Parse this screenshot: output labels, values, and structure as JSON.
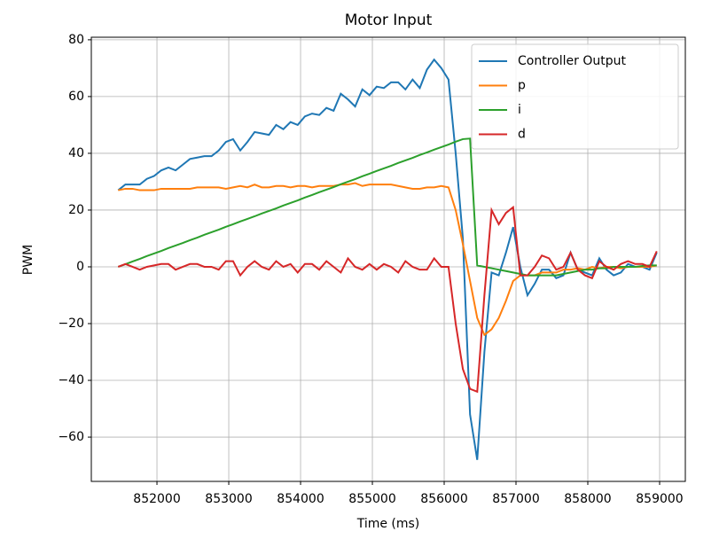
{
  "chart_data": {
    "type": "line",
    "title": "Motor Input",
    "x_label": "Time (ms)",
    "y_label": "PWM",
    "x": [
      851460,
      851560,
      851660,
      851760,
      851860,
      851960,
      852060,
      852160,
      852260,
      852360,
      852460,
      852560,
      852660,
      852760,
      852860,
      852960,
      853060,
      853160,
      853260,
      853360,
      853460,
      853560,
      853660,
      853760,
      853860,
      853960,
      854060,
      854160,
      854260,
      854360,
      854460,
      854560,
      854660,
      854760,
      854860,
      854960,
      855060,
      855160,
      855260,
      855360,
      855460,
      855560,
      855660,
      855760,
      855860,
      855960,
      856060,
      856160,
      856260,
      856360,
      856460,
      856560,
      856660,
      856760,
      856860,
      856960,
      857060,
      857160,
      857260,
      857360,
      857460,
      857560,
      857660,
      857760,
      857860,
      857960,
      858060,
      858160,
      858260,
      858360,
      858460,
      858560,
      858660,
      858760,
      858860,
      858960
    ],
    "series": [
      {
        "name": "Controller Output",
        "color": "#1f77b4",
        "values": [
          27,
          29,
          29,
          29,
          31,
          32,
          34,
          35,
          34,
          36,
          38,
          38.5,
          39,
          39,
          41,
          44,
          45,
          41,
          44,
          47.5,
          47,
          46.5,
          50,
          48.5,
          51,
          50,
          53,
          54,
          53.5,
          56,
          55,
          61,
          59,
          56.5,
          62.5,
          60.5,
          63.5,
          63,
          65,
          65,
          62.5,
          66,
          63,
          69.5,
          73,
          70,
          66,
          40,
          10,
          -52,
          -68,
          -30,
          -2,
          -3,
          5,
          14,
          0,
          -10,
          -6,
          -1,
          -1,
          -4,
          -3,
          5,
          -1,
          -2,
          -3,
          3,
          -1,
          -3,
          -2,
          1,
          0,
          0,
          -1,
          5
        ]
      },
      {
        "name": "p",
        "color": "#ff7f0e",
        "values": [
          27,
          27.5,
          27.5,
          27,
          27,
          27,
          27.5,
          27.5,
          27.5,
          27.5,
          27.5,
          28,
          28,
          28,
          28,
          27.5,
          28,
          28.5,
          28,
          29,
          28,
          28,
          28.5,
          28.5,
          28,
          28.5,
          28.5,
          28,
          28.5,
          28.5,
          28.5,
          29,
          29,
          29.5,
          28.5,
          29,
          29,
          29,
          29,
          28.5,
          28,
          27.5,
          27.5,
          28,
          28,
          28.5,
          28,
          20,
          8,
          -5,
          -18,
          -24,
          -22,
          -18,
          -12,
          -5,
          -3,
          -3,
          -3,
          -2,
          -2,
          -2,
          -1,
          -1,
          -0.5,
          -1,
          0,
          -0.5,
          0,
          0,
          -0.5,
          0,
          0,
          0,
          0,
          0.5
        ]
      },
      {
        "name": "i",
        "color": "#2ca02c",
        "values": [
          0,
          0.9,
          1.9,
          2.8,
          3.8,
          4.7,
          5.6,
          6.6,
          7.5,
          8.4,
          9.4,
          10.3,
          11.3,
          12.2,
          13.1,
          14.1,
          15,
          16,
          16.9,
          17.8,
          18.8,
          19.7,
          20.6,
          21.6,
          22.5,
          23.4,
          24.4,
          25.3,
          26.3,
          27.2,
          28.1,
          29.1,
          30,
          30.9,
          31.9,
          32.8,
          33.8,
          34.7,
          35.6,
          36.6,
          37.5,
          38.4,
          39.4,
          40.3,
          41.3,
          42.2,
          43.1,
          44.1,
          45,
          45.2,
          0.5,
          0,
          -0.5,
          -1,
          -1.5,
          -2,
          -2.5,
          -3,
          -3,
          -3,
          -3,
          -3,
          -2.5,
          -2,
          -1.5,
          -1,
          -1,
          -0.5,
          -0.5,
          0,
          0,
          0,
          0,
          0.3,
          0.5,
          0.5
        ]
      },
      {
        "name": "d",
        "color": "#d62728",
        "values": [
          0,
          1,
          0,
          -1,
          0,
          0.5,
          1,
          1,
          -1,
          0,
          1,
          1,
          0,
          0,
          -1,
          2,
          2,
          -3,
          0,
          2,
          0,
          -1,
          2,
          0,
          1,
          -2,
          1,
          1,
          -1,
          2,
          0,
          -2,
          3,
          0,
          -1,
          1,
          -1,
          1,
          0,
          -2,
          2,
          0,
          -1,
          -1,
          3,
          0,
          0,
          -20,
          -36,
          -43,
          -44,
          -10,
          20,
          15,
          19,
          21,
          -3,
          -3,
          0,
          4,
          3,
          -1,
          0,
          5,
          -1,
          -3,
          -4,
          2,
          0,
          -1,
          1,
          2,
          1,
          1,
          0,
          5.5
        ]
      }
    ],
    "xlim": [
      851086,
      859358
    ],
    "ylim": [
      -75.6,
      80.9
    ],
    "xticks": [
      852000,
      853000,
      854000,
      855000,
      856000,
      857000,
      858000,
      859000
    ],
    "yticks": [
      {
        "value": -60,
        "label": "−60"
      },
      {
        "value": -40,
        "label": "−40"
      },
      {
        "value": -20,
        "label": "−20"
      },
      0,
      20,
      40,
      60,
      80
    ],
    "grid": true,
    "legend": "upper right"
  }
}
